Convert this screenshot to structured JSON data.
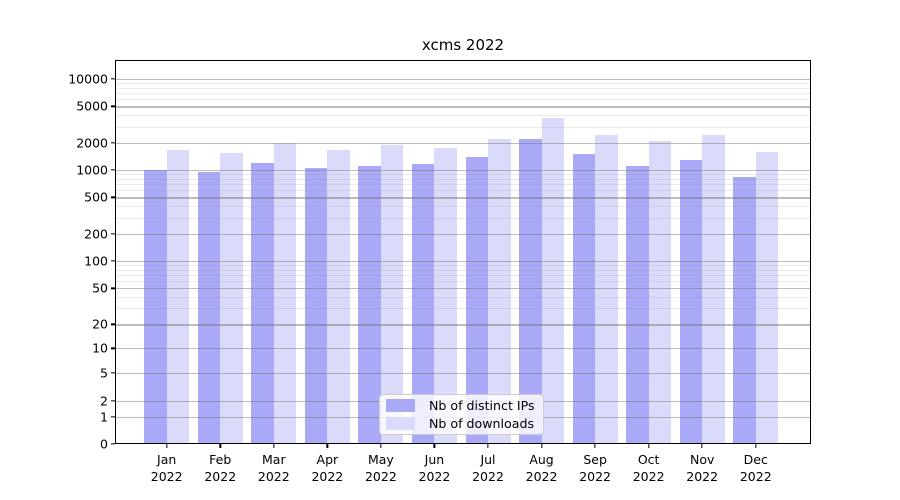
{
  "chart_data": {
    "type": "bar",
    "title": "xcms 2022",
    "categories": [
      "Jan",
      "Feb",
      "Mar",
      "Apr",
      "May",
      "Jun",
      "Jul",
      "Aug",
      "Sep",
      "Oct",
      "Nov",
      "Dec"
    ],
    "x_tick_second_line": "2022",
    "series": [
      {
        "name": "Nb of distinct IPs",
        "color": "#a9a9f8",
        "values": [
          1005,
          940,
          1185,
          1040,
          1115,
          1155,
          1400,
          2200,
          1510,
          1115,
          1280,
          845
        ]
      },
      {
        "name": "Nb of downloads",
        "color": "#dadafb",
        "values": [
          1650,
          1530,
          1970,
          1660,
          1880,
          1760,
          2190,
          3700,
          2420,
          2080,
          2440,
          1580
        ]
      }
    ],
    "xlabel": "",
    "ylabel": "",
    "yscale": "symlog",
    "ylim": [
      0,
      16000
    ],
    "grid": true,
    "legend_position": "lower center",
    "y_ticks": [
      {
        "v": 10000,
        "label": "10000"
      },
      {
        "v": 5000,
        "label": "5000"
      },
      {
        "v": 2000,
        "label": "2000"
      },
      {
        "v": 1000,
        "label": "1000"
      },
      {
        "v": 500,
        "label": "500"
      },
      {
        "v": 200,
        "label": "200"
      },
      {
        "v": 100,
        "label": "100"
      },
      {
        "v": 50,
        "label": "50"
      },
      {
        "v": 20,
        "label": "20"
      },
      {
        "v": 10,
        "label": "10"
      },
      {
        "v": 5,
        "label": "5"
      },
      {
        "v": 2,
        "label": "2"
      },
      {
        "v": 1,
        "label": "1"
      },
      {
        "v": 0,
        "label": "0"
      }
    ],
    "y_minor_gridline_values": [
      9000,
      8000,
      7000,
      6000,
      4000,
      3000,
      900,
      800,
      700,
      600,
      400,
      300,
      90,
      80,
      70,
      60,
      40,
      30
    ]
  },
  "colors": {
    "background": "#ffffff",
    "bar_distinct_ips": "#a9a9f8",
    "bar_downloads": "#dadafb",
    "axis_frame": "#000000",
    "grid_major": "#bdbdbd",
    "grid_minor": "#ebebeb",
    "legend_border": "#cccccc"
  }
}
